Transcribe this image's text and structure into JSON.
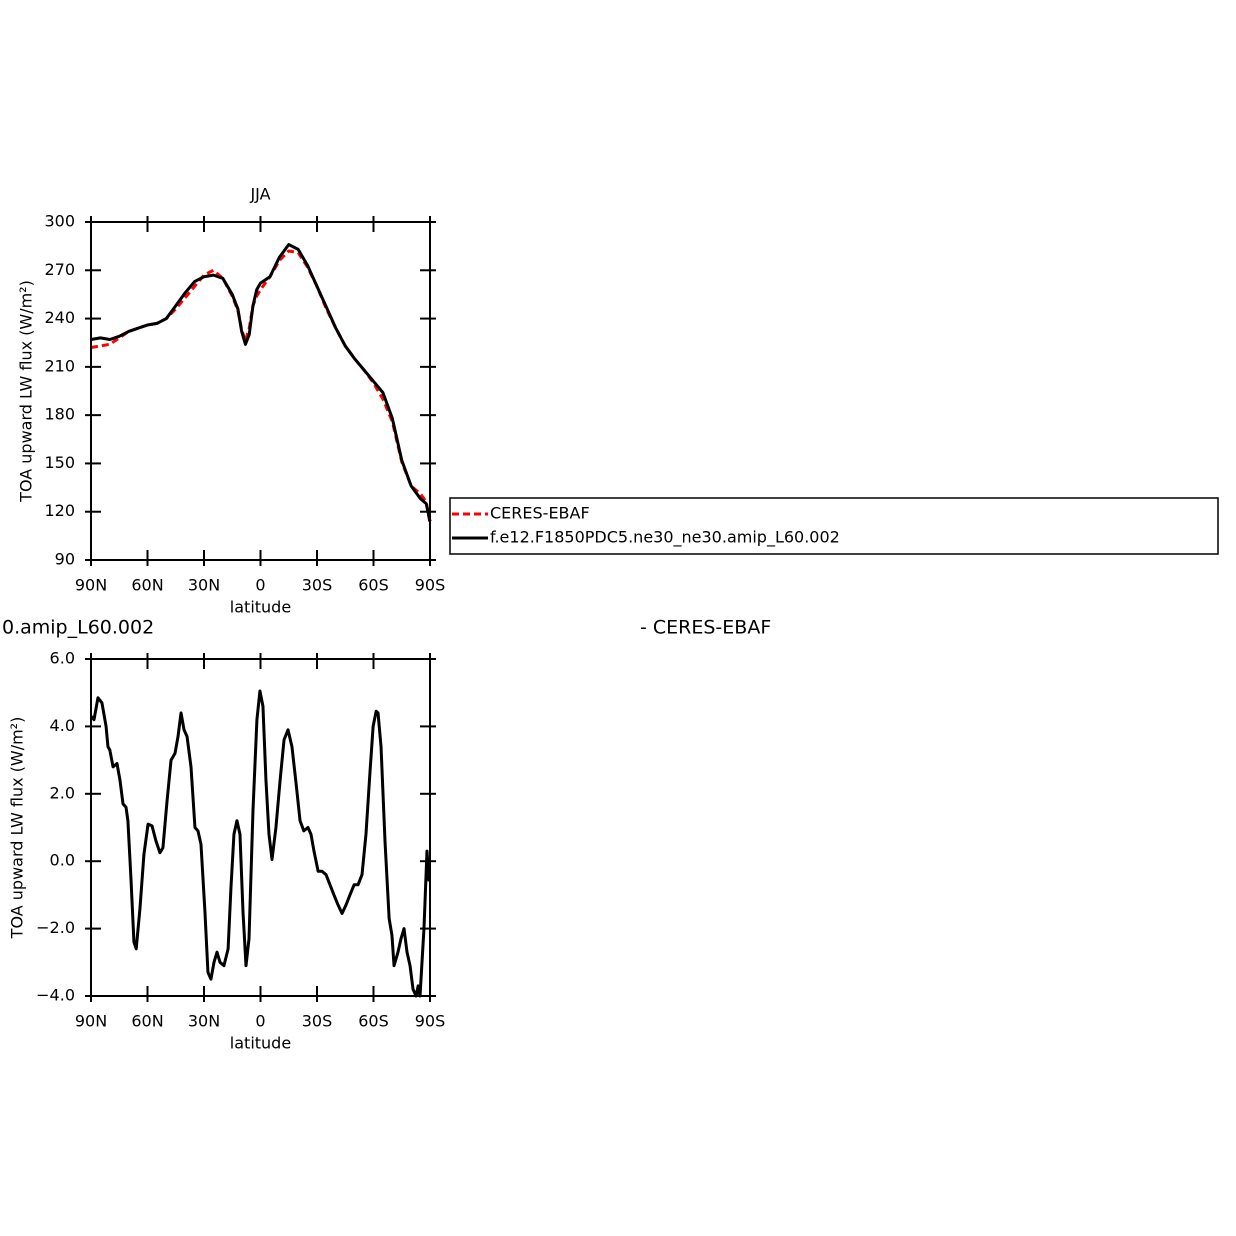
{
  "chart_data": [
    {
      "type": "line",
      "title": "JJA",
      "x_label": "latitude",
      "y_label": "TOA upward LW flux (W/m²)",
      "x": [
        90,
        85,
        80,
        75,
        70,
        65,
        60,
        55,
        50,
        45,
        40,
        35,
        30,
        25,
        20,
        15,
        12,
        10,
        8,
        6,
        4,
        2,
        0,
        -5,
        -10,
        -15,
        -20,
        -25,
        -30,
        -35,
        -40,
        -45,
        -50,
        -55,
        -60,
        -65,
        -70,
        -75,
        -80,
        -85,
        -88,
        -90
      ],
      "xlim": [
        90,
        -90
      ],
      "xticks": [
        {
          "value": 90,
          "label": "90N"
        },
        {
          "value": 60,
          "label": "60N"
        },
        {
          "value": 30,
          "label": "30N"
        },
        0,
        {
          "value": -30,
          "label": "30S"
        },
        {
          "value": -60,
          "label": "60S"
        },
        {
          "value": -90,
          "label": "90S"
        }
      ],
      "ylim": [
        90,
        300
      ],
      "yticks": [
        90,
        120,
        150,
        180,
        210,
        240,
        270,
        300
      ],
      "legend": "right",
      "series": [
        {
          "name": "CERES-EBAF",
          "color": "#ff0000",
          "dashed": true,
          "values": [
            222,
            223,
            224,
            228,
            232,
            234,
            236,
            237,
            240,
            246,
            253,
            260,
            267,
            270,
            265,
            254,
            245,
            233,
            226,
            234,
            248,
            254,
            258,
            266,
            276,
            282,
            281,
            272,
            260,
            246,
            234,
            223,
            215,
            208,
            200,
            190,
            176,
            151,
            136,
            131,
            126,
            113
          ]
        },
        {
          "name": "f.e12.F1850PDC5.ne30_ne30.amip_L60.002",
          "color": "#000000",
          "dashed": false,
          "values": [
            227,
            228,
            227,
            229,
            232,
            234,
            236,
            237,
            240,
            248,
            256,
            263,
            266,
            267,
            265,
            255,
            246,
            232,
            224,
            230,
            248,
            258,
            262,
            266,
            278,
            286,
            283,
            273,
            260,
            247,
            234,
            223,
            215,
            208,
            201,
            194,
            178,
            152,
            136,
            128,
            125,
            114
          ]
        }
      ]
    },
    {
      "type": "line",
      "title_left": "0.amip_L60.002",
      "title_right": "- CERES-EBAF",
      "x_label": "latitude",
      "y_label": "TOA upward LW flux (W/m²)",
      "x": [
        90,
        88.4,
        86.3,
        84.2,
        82,
        81,
        80,
        78.3,
        76.2,
        74.6,
        73,
        71.4,
        70.4,
        68.8,
        67.2,
        66,
        64,
        61.9,
        59.7,
        57.6,
        55.5,
        53.4,
        51.8,
        49.6,
        47.5,
        45.4,
        43.8,
        42.2,
        40.6,
        39,
        36.9,
        34.8,
        33.2,
        31.6,
        29.5,
        27.9,
        26.3,
        24.7,
        23.1,
        21.5,
        19.4,
        17.2,
        15.7,
        14.1,
        12.5,
        10.9,
        9.3,
        7.7,
        6.1,
        4,
        1.9,
        0.3,
        -1.3,
        -2.9,
        -4.5,
        -6.1,
        -8.2,
        -10.4,
        -12.5,
        -14.6,
        -16.7,
        -18.9,
        -21,
        -23,
        -25.2,
        -26.8,
        -28.4,
        -30.6,
        -32.7,
        -34.8,
        -36.9,
        -39,
        -41.2,
        -43.3,
        -45.4,
        -47.5,
        -49.7,
        -51.8,
        -53.9,
        -56,
        -58.2,
        -59.8,
        -61.4,
        -62.4,
        -64,
        -66.1,
        -68.3,
        -69.8,
        -70.9,
        -73,
        -74.6,
        -76.2,
        -77.8,
        -79.4,
        -81,
        -82.6,
        -83.7,
        -84.7,
        -86.8,
        -88.4,
        -89.5
      ],
      "xlim": [
        90,
        -90
      ],
      "xticks": [
        {
          "value": 90,
          "label": "90N"
        },
        {
          "value": 60,
          "label": "60N"
        },
        {
          "value": 30,
          "label": "30N"
        },
        0,
        {
          "value": -30,
          "label": "30S"
        },
        {
          "value": -60,
          "label": "60S"
        },
        {
          "value": -90,
          "label": "90S"
        }
      ],
      "ylim": [
        -4,
        6
      ],
      "yticks": [
        {
          "value": -4,
          "label": "−4.0"
        },
        {
          "value": -2,
          "label": "−2.0"
        },
        {
          "value": 0,
          "label": "0.0"
        },
        {
          "value": 2,
          "label": "2.0"
        },
        {
          "value": 4,
          "label": "4.0"
        },
        {
          "value": 6,
          "label": "6.0"
        }
      ],
      "series": [
        {
          "color": "#000000",
          "dashed": false,
          "values": [
            4.3,
            4.2,
            4.85,
            4.7,
            4.0,
            3.4,
            3.3,
            2.8,
            2.9,
            2.4,
            1.7,
            1.6,
            1.2,
            -0.5,
            -2.4,
            -2.6,
            -1.4,
            0.2,
            1.1,
            1.05,
            0.6,
            0.25,
            0.4,
            1.8,
            3.0,
            3.2,
            3.7,
            4.4,
            3.9,
            3.7,
            2.8,
            1.0,
            0.9,
            0.5,
            -1.5,
            -3.3,
            -3.5,
            -3.0,
            -2.7,
            -3.0,
            -3.1,
            -2.6,
            -0.8,
            0.8,
            1.2,
            0.8,
            -1.5,
            -3.1,
            -2.3,
            1.5,
            4.2,
            5.05,
            4.6,
            2.4,
            0.8,
            0.05,
            1.0,
            2.4,
            3.6,
            3.9,
            3.4,
            2.3,
            1.2,
            0.9,
            1.0,
            0.8,
            0.3,
            -0.3,
            -0.3,
            -0.4,
            -0.7,
            -1.0,
            -1.3,
            -1.55,
            -1.3,
            -1.0,
            -0.7,
            -0.7,
            -0.4,
            0.8,
            2.7,
            4.0,
            4.45,
            4.4,
            3.4,
            0.6,
            -1.7,
            -2.2,
            -3.1,
            -2.7,
            -2.3,
            -2.0,
            -2.7,
            -3.1,
            -3.8,
            -4.0,
            -3.7,
            -4.0,
            -2.0,
            0.3,
            -0.6
          ]
        }
      ]
    }
  ]
}
